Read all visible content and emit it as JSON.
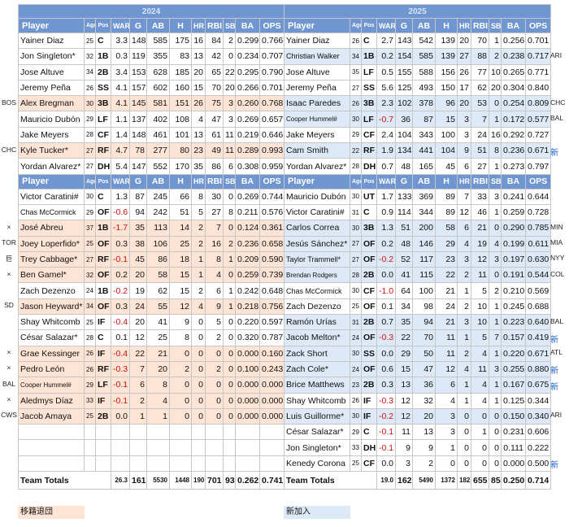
{
  "years": {
    "left": "2024",
    "right": "2025"
  },
  "headers": [
    "Player",
    "Age",
    "Pos",
    "WAR",
    "G",
    "AB",
    "H",
    "HR",
    "RBI",
    "SB",
    "BA",
    "OPS"
  ],
  "left": {
    "group1": [
      {
        "name": "Yainer Diaz",
        "age": "25",
        "pos": "C",
        "war": "3.3",
        "g": "148",
        "ab": "585",
        "h": "175",
        "hr": "16",
        "rbi": "84",
        "sb": "2",
        "ba": "0.299",
        "ops": "0.766"
      },
      {
        "name": "Jon Singleton*",
        "age": "32",
        "pos": "1B",
        "war": "0.3",
        "g": "119",
        "ab": "355",
        "h": "83",
        "hr": "13",
        "rbi": "42",
        "sb": "0",
        "ba": "0.234",
        "ops": "0.707"
      },
      {
        "name": "Jose Altuve",
        "age": "34",
        "pos": "2B",
        "war": "3.4",
        "g": "153",
        "ab": "628",
        "h": "185",
        "hr": "20",
        "rbi": "65",
        "sb": "22",
        "ba": "0.295",
        "ops": "0.790"
      },
      {
        "name": "Jeremy Peña",
        "age": "26",
        "pos": "SS",
        "war": "4.1",
        "g": "157",
        "ab": "602",
        "h": "160",
        "hr": "15",
        "rbi": "70",
        "sb": "20",
        "ba": "0.266",
        "ops": "0.701"
      },
      {
        "name": "Alex Bregman",
        "age": "30",
        "pos": "3B",
        "war": "4.1",
        "g": "145",
        "ab": "581",
        "h": "151",
        "hr": "26",
        "rbi": "75",
        "sb": "3",
        "ba": "0.260",
        "ops": "0.768",
        "hl": "orange",
        "note": "BOS"
      },
      {
        "name": "Mauricio Dubón",
        "age": "29",
        "pos": "LF",
        "war": "1.1",
        "g": "137",
        "ab": "402",
        "h": "108",
        "hr": "4",
        "rbi": "47",
        "sb": "3",
        "ba": "0.269",
        "ops": "0.657"
      },
      {
        "name": "Jake Meyers",
        "age": "28",
        "pos": "CF",
        "war": "1.4",
        "g": "148",
        "ab": "461",
        "h": "101",
        "hr": "13",
        "rbi": "61",
        "sb": "11",
        "ba": "0.219",
        "ops": "0.646"
      },
      {
        "name": "Kyle Tucker*",
        "age": "27",
        "pos": "RF",
        "war": "4.7",
        "g": "78",
        "ab": "277",
        "h": "80",
        "hr": "23",
        "rbi": "49",
        "sb": "11",
        "ba": "0.289",
        "ops": "0.993",
        "hl": "orange",
        "note": "CHC"
      },
      {
        "name": "Yordan Alvarez*",
        "age": "27",
        "pos": "DH",
        "war": "5.4",
        "g": "147",
        "ab": "552",
        "h": "170",
        "hr": "35",
        "rbi": "86",
        "sb": "6",
        "ba": "0.308",
        "ops": "0.959"
      }
    ],
    "group2": [
      {
        "name": "Victor Caratini#",
        "age": "30",
        "pos": "C",
        "war": "1.3",
        "g": "87",
        "ab": "245",
        "h": "66",
        "hr": "8",
        "rbi": "30",
        "sb": "0",
        "ba": "0.269",
        "ops": "0.744"
      },
      {
        "name": "Chas McCormick",
        "age": "29",
        "pos": "OF",
        "war": "-0.6",
        "g": "94",
        "ab": "242",
        "h": "51",
        "hr": "5",
        "rbi": "27",
        "sb": "8",
        "ba": "0.211",
        "ops": "0.576",
        "small": true
      },
      {
        "name": "José Abreu",
        "age": "37",
        "pos": "1B",
        "war": "-1.7",
        "g": "35",
        "ab": "113",
        "h": "14",
        "hr": "2",
        "rbi": "7",
        "sb": "0",
        "ba": "0.124",
        "ops": "0.361",
        "hl": "orange",
        "note": "×"
      },
      {
        "name": "Joey Loperfido*",
        "age": "25",
        "pos": "OF",
        "war": "0.3",
        "g": "38",
        "ab": "106",
        "h": "25",
        "hr": "2",
        "rbi": "16",
        "sb": "2",
        "ba": "0.236",
        "ops": "0.658",
        "hl": "orange",
        "note": "TOR"
      },
      {
        "name": "Trey Cabbage*",
        "age": "27",
        "pos": "RF",
        "war": "-0.1",
        "g": "45",
        "ab": "86",
        "h": "18",
        "hr": "1",
        "rbi": "8",
        "sb": "1",
        "ba": "0.209",
        "ops": "0.590",
        "hl": "orange",
        "note": "巨"
      },
      {
        "name": "Ben Gamel*",
        "age": "32",
        "pos": "OF",
        "war": "0.2",
        "g": "20",
        "ab": "58",
        "h": "15",
        "hr": "1",
        "rbi": "4",
        "sb": "0",
        "ba": "0.259",
        "ops": "0.739",
        "hl": "orange",
        "note": "×"
      },
      {
        "name": "Zach Dezenzo",
        "age": "24",
        "pos": "1B",
        "war": "-0.2",
        "g": "19",
        "ab": "62",
        "h": "15",
        "hr": "2",
        "rbi": "6",
        "sb": "1",
        "ba": "0.242",
        "ops": "0.648"
      },
      {
        "name": "Jason Heyward*",
        "age": "34",
        "pos": "OF",
        "war": "0.3",
        "g": "24",
        "ab": "55",
        "h": "12",
        "hr": "4",
        "rbi": "9",
        "sb": "1",
        "ba": "0.218",
        "ops": "0.756",
        "hl": "orange",
        "note": "SD"
      },
      {
        "name": "Shay Whitcomb",
        "age": "25",
        "pos": "IF",
        "war": "-0.4",
        "g": "20",
        "ab": "41",
        "h": "9",
        "hr": "0",
        "rbi": "5",
        "sb": "0",
        "ba": "0.220",
        "ops": "0.597"
      },
      {
        "name": "César Salazar*",
        "age": "28",
        "pos": "C",
        "war": "0.1",
        "g": "12",
        "ab": "25",
        "h": "8",
        "hr": "0",
        "rbi": "2",
        "sb": "0",
        "ba": "0.320",
        "ops": "0.787"
      },
      {
        "name": "Grae Kessinger",
        "age": "26",
        "pos": "IF",
        "war": "-0.4",
        "g": "22",
        "ab": "21",
        "h": "0",
        "hr": "0",
        "rbi": "0",
        "sb": "0",
        "ba": "0.000",
        "ops": "0.160",
        "hl": "orange",
        "note": "×"
      },
      {
        "name": "Pedro León",
        "age": "26",
        "pos": "RF",
        "war": "-0.3",
        "g": "7",
        "ab": "20",
        "h": "2",
        "hr": "0",
        "rbi": "2",
        "sb": "0",
        "ba": "0.100",
        "ops": "0.243",
        "hl": "orange",
        "note": "×"
      },
      {
        "name": "Cooper Hummel#",
        "age": "29",
        "pos": "LF",
        "war": "-0.1",
        "g": "6",
        "ab": "8",
        "h": "0",
        "hr": "0",
        "rbi": "0",
        "sb": "0",
        "ba": "0.000",
        "ops": "0.000",
        "hl": "orange",
        "note": "BAL",
        "tiny": true
      },
      {
        "name": "Aledmys Díaz",
        "age": "33",
        "pos": "IF",
        "war": "-0.1",
        "g": "2",
        "ab": "4",
        "h": "0",
        "hr": "0",
        "rbi": "0",
        "sb": "0",
        "ba": "0.000",
        "ops": "0.000",
        "hl": "orange",
        "note": "×"
      },
      {
        "name": "Jacob Amaya",
        "age": "25",
        "pos": "2B",
        "war": "0.0",
        "g": "1",
        "ab": "1",
        "h": "0",
        "hr": "0",
        "rbi": "0",
        "sb": "0",
        "ba": "0.000",
        "ops": "0.000",
        "hl": "orange",
        "note": "CWS"
      },
      {
        "name": "",
        "age": "",
        "pos": "",
        "war": "",
        "g": "",
        "ab": "",
        "h": "",
        "hr": "",
        "rbi": "",
        "sb": "",
        "ba": "",
        "ops": ""
      },
      {
        "name": "",
        "age": "",
        "pos": "",
        "war": "",
        "g": "",
        "ab": "",
        "h": "",
        "hr": "",
        "rbi": "",
        "sb": "",
        "ba": "",
        "ops": ""
      },
      {
        "name": "",
        "age": "",
        "pos": "",
        "war": "",
        "g": "",
        "ab": "",
        "h": "",
        "hr": "",
        "rbi": "",
        "sb": "",
        "ba": "",
        "ops": ""
      }
    ],
    "totals": {
      "label": "Team Totals",
      "war": "26.3",
      "g": "161",
      "ab": "5530",
      "h": "1448",
      "hr": "190",
      "rbi": "701",
      "sb": "93",
      "ba": "0.262",
      "ops": "0.741"
    }
  },
  "right": {
    "group1": [
      {
        "name": "Yainer Diaz",
        "age": "26",
        "pos": "C",
        "war": "2.7",
        "g": "143",
        "ab": "542",
        "h": "139",
        "hr": "20",
        "rbi": "70",
        "sb": "1",
        "ba": "0.256",
        "ops": "0.701"
      },
      {
        "name": "Christian Walker",
        "age": "34",
        "pos": "1B",
        "war": "0.2",
        "g": "154",
        "ab": "585",
        "h": "139",
        "hr": "27",
        "rbi": "88",
        "sb": "2",
        "ba": "0.238",
        "ops": "0.717",
        "hl": "blue",
        "note": "ARI",
        "small": true
      },
      {
        "name": "Jose Altuve",
        "age": "35",
        "pos": "LF",
        "war": "0.5",
        "g": "155",
        "ab": "588",
        "h": "156",
        "hr": "26",
        "rbi": "77",
        "sb": "10",
        "ba": "0.265",
        "ops": "0.771"
      },
      {
        "name": "Jeremy Peña",
        "age": "27",
        "pos": "SS",
        "war": "5.6",
        "g": "125",
        "ab": "493",
        "h": "150",
        "hr": "17",
        "rbi": "62",
        "sb": "20",
        "ba": "0.304",
        "ops": "0.840"
      },
      {
        "name": "Isaac Paredes",
        "age": "26",
        "pos": "3B",
        "war": "2.3",
        "g": "102",
        "ab": "378",
        "h": "96",
        "hr": "20",
        "rbi": "53",
        "sb": "0",
        "ba": "0.254",
        "ops": "0.809",
        "hl": "blue",
        "note": "CHC"
      },
      {
        "name": "Cooper Hummel#",
        "age": "30",
        "pos": "LF",
        "war": "-0.7",
        "g": "36",
        "ab": "87",
        "h": "15",
        "hr": "3",
        "rbi": "7",
        "sb": "1",
        "ba": "0.172",
        "ops": "0.577",
        "hl": "blue",
        "note": "BAL",
        "tiny": true
      },
      {
        "name": "Jake Meyers",
        "age": "29",
        "pos": "CF",
        "war": "2.4",
        "g": "104",
        "ab": "343",
        "h": "100",
        "hr": "3",
        "rbi": "24",
        "sb": "16",
        "ba": "0.292",
        "ops": "0.727"
      },
      {
        "name": "Cam Smith",
        "age": "22",
        "pos": "RF",
        "war": "1.9",
        "g": "134",
        "ab": "441",
        "h": "104",
        "hr": "9",
        "rbi": "51",
        "sb": "8",
        "ba": "0.236",
        "ops": "0.671",
        "hl": "blue",
        "note": "新",
        "noteBlue": true
      },
      {
        "name": "Yordan Alvarez*",
        "age": "28",
        "pos": "DH",
        "war": "0.7",
        "g": "48",
        "ab": "165",
        "h": "45",
        "hr": "6",
        "rbi": "27",
        "sb": "1",
        "ba": "0.273",
        "ops": "0.797"
      }
    ],
    "group2": [
      {
        "name": "Mauricio Dubón",
        "age": "30",
        "pos": "UT",
        "war": "1.7",
        "g": "133",
        "ab": "369",
        "h": "89",
        "hr": "7",
        "rbi": "33",
        "sb": "3",
        "ba": "0.241",
        "ops": "0.644"
      },
      {
        "name": "Victor Caratini#",
        "age": "31",
        "pos": "C",
        "war": "0.9",
        "g": "114",
        "ab": "344",
        "h": "89",
        "hr": "12",
        "rbi": "46",
        "sb": "1",
        "ba": "0.259",
        "ops": "0.728"
      },
      {
        "name": "Carlos Correa",
        "age": "30",
        "pos": "3B",
        "war": "1.3",
        "g": "51",
        "ab": "200",
        "h": "58",
        "hr": "6",
        "rbi": "21",
        "sb": "0",
        "ba": "0.290",
        "ops": "0.785",
        "hl": "blue",
        "note": "MIN"
      },
      {
        "name": "Jesús Sánchez*",
        "age": "27",
        "pos": "OF",
        "war": "0.2",
        "g": "48",
        "ab": "146",
        "h": "29",
        "hr": "4",
        "rbi": "19",
        "sb": "4",
        "ba": "0.199",
        "ops": "0.611",
        "hl": "blue",
        "note": "MIA"
      },
      {
        "name": "Taylor Trammell*",
        "age": "27",
        "pos": "OF",
        "war": "-0.2",
        "g": "52",
        "ab": "117",
        "h": "23",
        "hr": "3",
        "rbi": "12",
        "sb": "3",
        "ba": "0.197",
        "ops": "0.630",
        "hl": "blue",
        "note": "NYY",
        "small": true
      },
      {
        "name": "Brendan Rodgers",
        "age": "28",
        "pos": "2B",
        "war": "0.0",
        "g": "41",
        "ab": "115",
        "h": "22",
        "hr": "2",
        "rbi": "11",
        "sb": "0",
        "ba": "0.191",
        "ops": "0.544",
        "hl": "blue",
        "note": "COL",
        "tiny": true
      },
      {
        "name": "Chas McCormick",
        "age": "30",
        "pos": "CF",
        "war": "-1.0",
        "g": "64",
        "ab": "100",
        "h": "21",
        "hr": "1",
        "rbi": "5",
        "sb": "2",
        "ba": "0.210",
        "ops": "0.569",
        "small": true
      },
      {
        "name": "Zach Dezenzo",
        "age": "25",
        "pos": "OF",
        "war": "0.1",
        "g": "34",
        "ab": "98",
        "h": "24",
        "hr": "2",
        "rbi": "10",
        "sb": "1",
        "ba": "0.245",
        "ops": "0.688"
      },
      {
        "name": "Ramón Urías",
        "age": "31",
        "pos": "2B",
        "war": "0.7",
        "g": "35",
        "ab": "94",
        "h": "21",
        "hr": "3",
        "rbi": "10",
        "sb": "1",
        "ba": "0.223",
        "ops": "0.640",
        "hl": "blue",
        "note": "BAL"
      },
      {
        "name": "Jacob Melton*",
        "age": "24",
        "pos": "OF",
        "war": "-0.3",
        "g": "22",
        "ab": "70",
        "h": "11",
        "hr": "1",
        "rbi": "5",
        "sb": "7",
        "ba": "0.157",
        "ops": "0.419",
        "hl": "blue",
        "note": "新",
        "noteBlue": true
      },
      {
        "name": "Zack Short",
        "age": "30",
        "pos": "SS",
        "war": "0.0",
        "g": "29",
        "ab": "50",
        "h": "11",
        "hr": "2",
        "rbi": "4",
        "sb": "1",
        "ba": "0.220",
        "ops": "0.671",
        "hl": "blue",
        "note": "ATL"
      },
      {
        "name": "Zach Cole*",
        "age": "24",
        "pos": "OF",
        "war": "0.6",
        "g": "15",
        "ab": "47",
        "h": "12",
        "hr": "4",
        "rbi": "11",
        "sb": "3",
        "ba": "0.255",
        "ops": "0.880",
        "hl": "blue",
        "note": "新",
        "noteBlue": true
      },
      {
        "name": "Brice Matthews",
        "age": "23",
        "pos": "2B",
        "war": "0.3",
        "g": "13",
        "ab": "36",
        "h": "6",
        "hr": "1",
        "rbi": "4",
        "sb": "1",
        "ba": "0.167",
        "ops": "0.675",
        "hl": "blue",
        "note": "新",
        "noteBlue": true
      },
      {
        "name": "Shay Whitcomb",
        "age": "26",
        "pos": "IF",
        "war": "-0.3",
        "g": "12",
        "ab": "32",
        "h": "4",
        "hr": "1",
        "rbi": "4",
        "sb": "1",
        "ba": "0.125",
        "ops": "0.344"
      },
      {
        "name": "Luis Guillorme*",
        "age": "30",
        "pos": "IF",
        "war": "-0.2",
        "g": "12",
        "ab": "20",
        "h": "3",
        "hr": "0",
        "rbi": "0",
        "sb": "0",
        "ba": "0.150",
        "ops": "0.340",
        "hl": "blue",
        "note": "ARI"
      },
      {
        "name": "César Salazar*",
        "age": "29",
        "pos": "C",
        "war": "-0.1",
        "g": "11",
        "ab": "13",
        "h": "3",
        "hr": "0",
        "rbi": "1",
        "sb": "0",
        "ba": "0.231",
        "ops": "0.606"
      },
      {
        "name": "Jon Singleton*",
        "age": "33",
        "pos": "DH",
        "war": "-0.1",
        "g": "9",
        "ab": "9",
        "h": "1",
        "hr": "0",
        "rbi": "0",
        "sb": "0",
        "ba": "0.111",
        "ops": "0.222"
      },
      {
        "name": "Kenedy Corona",
        "age": "25",
        "pos": "CF",
        "war": "0.0",
        "g": "3",
        "ab": "2",
        "h": "0",
        "hr": "0",
        "rbi": "0",
        "sb": "0",
        "ba": "0.000",
        "ops": "0.500",
        "note": "新",
        "noteBlue": true
      }
    ],
    "totals": {
      "label": "Team Totals",
      "war": "19.0",
      "g": "162",
      "ab": "5490",
      "h": "1372",
      "hr": "182",
      "rbi": "655",
      "sb": "85",
      "ba": "0.250",
      "ops": "0.714"
    }
  },
  "legend": {
    "left": "移籍退団",
    "right": "新加入"
  },
  "colors": {
    "header": "#6f96d1",
    "departed": "#fde4d5",
    "new": "#dde9f6",
    "negative": "#d01010"
  }
}
